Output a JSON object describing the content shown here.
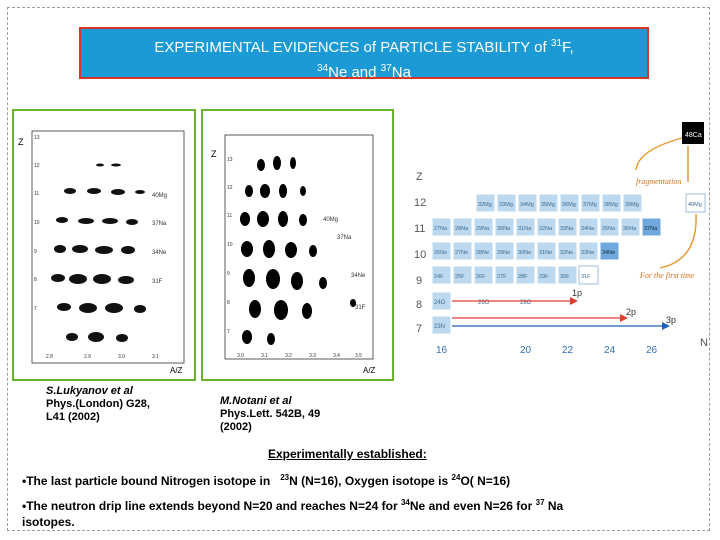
{
  "title": {
    "part1": "EXPERIMENTAL EVIDENCES of PARTICLE STABILITY of",
    "sup1": "31",
    "part2": "F,",
    "sup2": "34",
    "part3": "Ne and",
    "sup3": "37",
    "part4": "Na"
  },
  "left_figure": {
    "y_axis_label": "Z",
    "x_axis_label": "A/Z",
    "y_ticks": [
      "13",
      "12",
      "11",
      "10",
      "9",
      "8",
      "7"
    ],
    "x_ticks": [
      "2.8",
      "2.9",
      "3.0",
      "3.1"
    ],
    "isotope_labels": [
      "40Mg",
      "37Na",
      "34Ne",
      "31F"
    ]
  },
  "middle_figure": {
    "y_axis_label": "Z",
    "x_axis_label": "A/Z",
    "y_ticks": [
      "13",
      "12",
      "11",
      "10",
      "9",
      "8",
      "7"
    ],
    "x_ticks": [
      "3.0",
      "3.1",
      "3.2",
      "3.3",
      "3.4",
      "3.5"
    ],
    "isotope_labels": [
      "40Mg",
      "37Na",
      "34Ne",
      "31F"
    ]
  },
  "chart": {
    "z_label": "Z",
    "n_label": "N",
    "row_labels": [
      "12",
      "11",
      "10",
      "9",
      "8",
      "7"
    ],
    "n_ticks": [
      "16",
      "20",
      "22",
      "24",
      "26"
    ],
    "corner_isotope": "48Ca",
    "fragmentation_label": "fragmentation",
    "first_time_label": "For the first time",
    "isotopes_mg": [
      "32Mg",
      "33Mg",
      "34Mg",
      "35Mg",
      "36Mg",
      "37Mg",
      "38Mg",
      "39Mg",
      "40Mg"
    ],
    "isotopes_na": [
      "27Na",
      "28Na",
      "29Na",
      "30Na",
      "31Na",
      "32Na",
      "33Na",
      "34Na",
      "35Na",
      "36Na",
      "37Na"
    ],
    "isotopes_ne": [
      "26Ne",
      "27Ne",
      "28Ne",
      "29Ne",
      "30Ne",
      "31Ne",
      "32Ne",
      "33Ne",
      "34Ne"
    ],
    "isotopes_f": [
      "24F",
      "25F",
      "26F",
      "27F",
      "28F",
      "29F",
      "30F",
      "31F"
    ],
    "isotopes_o": [
      "24O",
      "26O",
      "28O"
    ],
    "isotopes_n": [
      "23N"
    ],
    "arrow_labels": [
      "1p",
      "2p",
      "3p"
    ],
    "colors": {
      "stable_cell": "#bcd9ef",
      "highlight_cell": "#6fa8dc",
      "arrow_red": "#e03c31",
      "arrow_blue": "#1f5fbf",
      "arrow_orange": "#e8962a"
    }
  },
  "captions": {
    "left": {
      "authors": "S.Lukyanov et al",
      "line2": "Phys.(London) G28,",
      "line3": "L41 (2002)"
    },
    "middle": {
      "authors": "M.Notani et al",
      "line2": "Phys.Lett. 542B, 49",
      "line3": "(2002)"
    }
  },
  "established": {
    "heading": "Experimentally established:",
    "bullet1_a": "•The last particle bound Nitrogen isotope in",
    "bullet1_sup1": "23",
    "bullet1_b": "N (N=16), Oxygen isotope is",
    "bullet1_sup2": "24",
    "bullet1_c": "O( N=16)",
    "bullet2_a": "•The neutron drip line extends beyond N=20 and  reaches N=24 for",
    "bullet2_sup1": "34",
    "bullet2_b": "Ne and even N=26 for",
    "bullet2_sup2": "37",
    "bullet2_c": "Na",
    "bullet2_d": "isotopes."
  }
}
